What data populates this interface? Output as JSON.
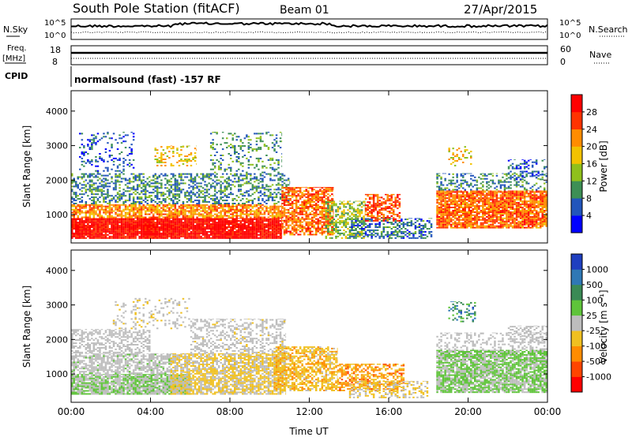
{
  "header": {
    "station": "South Pole Station (fitACF)",
    "beam": "Beam 01",
    "date": "27/Apr/2015"
  },
  "top_panels": {
    "nsky": {
      "label": "N.Sky",
      "ticks": [
        "10^5",
        "10^0"
      ]
    },
    "nsearch": {
      "label": "N.Search",
      "ticks": [
        "10^5",
        "10^0"
      ]
    },
    "freq": {
      "label_line1": "Freq.",
      "label_line2": "[MHz]",
      "ticks": [
        "18",
        "8"
      ]
    },
    "nave": {
      "label": "Nave",
      "ticks": [
        "60",
        "0"
      ]
    },
    "cpid": {
      "label": "CPID",
      "text": "normalsound (fast) -157 RF"
    }
  },
  "x_axis": {
    "label": "Time UT",
    "ticks": [
      "00:00",
      "04:00",
      "08:00",
      "12:00",
      "16:00",
      "20:00",
      "00:00"
    ]
  },
  "colors": {
    "power": [
      "#0000ff",
      "#2255bb",
      "#3d8f55",
      "#8fc01c",
      "#f2c200",
      "#ff8c00",
      "#ff3300",
      "#ff0000"
    ],
    "velocity": [
      "#1f3fbf",
      "#2f78b5",
      "#3a8a55",
      "#5fc43a",
      "#bdbdbd",
      "#f0c020",
      "#ff8c00",
      "#ff4500",
      "#ff0000"
    ]
  },
  "chart_data": [
    {
      "type": "heatmap",
      "title": "",
      "xlabel": "",
      "ylabel": "Slant Range [km]",
      "xlim": [
        0,
        24
      ],
      "ylim": [
        180,
        4590
      ],
      "yticks": [
        "1000",
        "2000",
        "3000",
        "4000"
      ],
      "colorbar": {
        "label": "Power [dB]",
        "ticks": [
          "4",
          "8",
          "12",
          "16",
          "20",
          "24",
          "28"
        ],
        "range": [
          0,
          32
        ]
      },
      "bands": [
        {
          "t0": 0.0,
          "t1": 10.6,
          "r0": 300,
          "r1": 900,
          "level": 30,
          "density": 0.95
        },
        {
          "t0": 0.0,
          "t1": 10.6,
          "r0": 900,
          "r1": 1300,
          "level": 22,
          "density": 0.75
        },
        {
          "t0": 0.0,
          "t1": 11.0,
          "r0": 1300,
          "r1": 2200,
          "level": 9,
          "density": 0.45
        },
        {
          "t0": 0.4,
          "t1": 3.2,
          "r0": 2200,
          "r1": 3400,
          "level": 6,
          "density": 0.18
        },
        {
          "t0": 4.2,
          "t1": 6.3,
          "r0": 2400,
          "r1": 3000,
          "level": 18,
          "density": 0.3
        },
        {
          "t0": 7.0,
          "t1": 10.6,
          "r0": 2200,
          "r1": 3400,
          "level": 10,
          "density": 0.22
        },
        {
          "t0": 10.6,
          "t1": 13.2,
          "r0": 400,
          "r1": 1800,
          "level": 24,
          "density": 0.7
        },
        {
          "t0": 12.8,
          "t1": 14.8,
          "r0": 300,
          "r1": 1400,
          "level": 14,
          "density": 0.55
        },
        {
          "t0": 14.8,
          "t1": 16.6,
          "r0": 800,
          "r1": 1600,
          "level": 25,
          "density": 0.6
        },
        {
          "t0": 14.0,
          "t1": 18.2,
          "r0": 300,
          "r1": 900,
          "level": 8,
          "density": 0.45
        },
        {
          "t0": 18.4,
          "t1": 24.0,
          "r0": 600,
          "r1": 1700,
          "level": 24,
          "density": 0.85
        },
        {
          "t0": 18.4,
          "t1": 24.0,
          "r0": 1700,
          "r1": 2200,
          "level": 9,
          "density": 0.35
        },
        {
          "t0": 19.0,
          "t1": 20.2,
          "r0": 2400,
          "r1": 3000,
          "level": 18,
          "density": 0.25
        },
        {
          "t0": 22.0,
          "t1": 24.0,
          "r0": 2000,
          "r1": 2600,
          "level": 6,
          "density": 0.3
        }
      ]
    },
    {
      "type": "heatmap",
      "title": "",
      "xlabel": "Time UT",
      "ylabel": "Slant Range [km]",
      "xlim": [
        0,
        24
      ],
      "ylim": [
        180,
        4590
      ],
      "yticks": [
        "1000",
        "2000",
        "3000",
        "4000"
      ],
      "colorbar": {
        "label": "Velocity [m s⁻¹]",
        "ticks": [
          "1000",
          "500",
          "100",
          "25",
          "-25",
          "-100",
          "-500",
          "-1000"
        ],
        "range": [
          -1200,
          1200
        ]
      },
      "bands": [
        {
          "t0": 0.0,
          "t1": 6.0,
          "r0": 400,
          "r1": 1000,
          "level": 120,
          "density": 0.9
        },
        {
          "t0": 0.0,
          "t1": 5.0,
          "r0": 1000,
          "r1": 1600,
          "level": 60,
          "density": 0.65
        },
        {
          "t0": 0.0,
          "t1": 4.0,
          "r0": 1600,
          "r1": 2300,
          "level": 0,
          "density": 0.5
        },
        {
          "t0": 2.0,
          "t1": 6.0,
          "r0": 2300,
          "r1": 3200,
          "level": -80,
          "density": 0.2
        },
        {
          "t0": 5.0,
          "t1": 10.8,
          "r0": 400,
          "r1": 1600,
          "level": -150,
          "density": 0.75
        },
        {
          "t0": 6.0,
          "t1": 10.8,
          "r0": 1600,
          "r1": 2600,
          "level": -60,
          "density": 0.35
        },
        {
          "t0": 10.2,
          "t1": 13.4,
          "r0": 500,
          "r1": 1800,
          "level": -300,
          "density": 0.65
        },
        {
          "t0": 13.4,
          "t1": 16.8,
          "r0": 500,
          "r1": 1300,
          "level": -450,
          "density": 0.55
        },
        {
          "t0": 14.0,
          "t1": 18.0,
          "r0": 300,
          "r1": 800,
          "level": -150,
          "density": 0.45
        },
        {
          "t0": 18.4,
          "t1": 24.0,
          "r0": 450,
          "r1": 1700,
          "level": 150,
          "density": 0.85
        },
        {
          "t0": 18.4,
          "t1": 24.0,
          "r0": 1700,
          "r1": 2200,
          "level": 0,
          "density": 0.3
        },
        {
          "t0": 19.0,
          "t1": 20.4,
          "r0": 2500,
          "r1": 3100,
          "level": 600,
          "density": 0.25
        },
        {
          "t0": 22.0,
          "t1": 24.0,
          "r0": 1900,
          "r1": 2400,
          "level": 0,
          "density": 0.4
        }
      ]
    }
  ]
}
